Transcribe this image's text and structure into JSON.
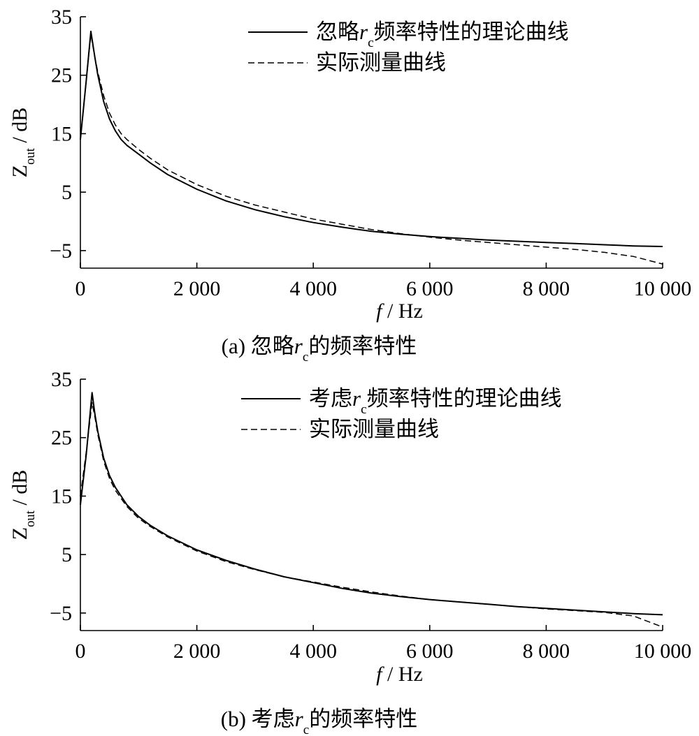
{
  "chart_data": [
    {
      "type": "line",
      "caption": "(a)  忽略rc的频率特性",
      "xlabel": "f / Hz",
      "ylabel": "Zout / dB",
      "xlim": [
        0,
        10000
      ],
      "ylim": [
        -8,
        35
      ],
      "xticks": [
        0,
        2000,
        4000,
        6000,
        8000,
        10000
      ],
      "xtick_labels": [
        "0",
        "2 000",
        "4 000",
        "6 000",
        "8 000",
        "10 000"
      ],
      "yticks": [
        -5,
        5,
        15,
        25,
        35
      ],
      "ytick_labels": [
        "−5",
        "5",
        "15",
        "25",
        "35"
      ],
      "legend_position": "top-right",
      "series": [
        {
          "name": "忽略rc频率特性的理论曲线",
          "style": "solid",
          "x": [
            0,
            100,
            180,
            250,
            300,
            400,
            500,
            600,
            700,
            800,
            1000,
            1200,
            1500,
            2000,
            2500,
            3000,
            3500,
            4000,
            4500,
            5000,
            5500,
            6000,
            6500,
            7000,
            7500,
            8000,
            8500,
            9000,
            9500,
            10000
          ],
          "y": [
            14,
            24,
            32.5,
            28,
            25,
            20.5,
            17.5,
            15.5,
            14,
            13,
            11.5,
            10,
            8,
            5.5,
            3.5,
            2,
            0.8,
            -0.2,
            -1,
            -1.7,
            -2.2,
            -2.6,
            -2.9,
            -3.2,
            -3.4,
            -3.6,
            -3.8,
            -4,
            -4.2,
            -4.3
          ]
        },
        {
          "name": "实际测量曲线",
          "style": "dashed",
          "x": [
            0,
            100,
            180,
            250,
            300,
            400,
            500,
            600,
            700,
            800,
            1000,
            1200,
            1500,
            2000,
            2500,
            3000,
            3500,
            4000,
            4500,
            5000,
            5500,
            6000,
            6500,
            7000,
            7500,
            8000,
            8500,
            9000,
            9500,
            10000
          ],
          "y": [
            14,
            24,
            32,
            28,
            25.5,
            21.5,
            18.5,
            16.5,
            15,
            14,
            12.3,
            10.8,
            8.8,
            6.3,
            4.3,
            2.8,
            1.6,
            0.4,
            -0.5,
            -1.4,
            -2.1,
            -2.7,
            -3.2,
            -3.6,
            -4,
            -4.4,
            -4.8,
            -5.3,
            -6,
            -7.3
          ]
        }
      ]
    },
    {
      "type": "line",
      "caption": "(b)  考虑rc的频率特性",
      "xlabel": "f / Hz",
      "ylabel": "Zout / dB",
      "xlim": [
        0,
        10000
      ],
      "ylim": [
        -8,
        35
      ],
      "xticks": [
        0,
        2000,
        4000,
        6000,
        8000,
        10000
      ],
      "xtick_labels": [
        "0",
        "2 000",
        "4 000",
        "6 000",
        "8 000",
        "10 000"
      ],
      "yticks": [
        -5,
        5,
        15,
        25,
        35
      ],
      "ytick_labels": [
        "−5",
        "5",
        "15",
        "25",
        "35"
      ],
      "legend_position": "top-right",
      "series": [
        {
          "name": "考虑rc频率特性的理论曲线",
          "style": "solid",
          "x": [
            0,
            100,
            200,
            250,
            300,
            400,
            500,
            600,
            800,
            1000,
            1200,
            1500,
            2000,
            2500,
            3000,
            3500,
            4000,
            4500,
            5000,
            5500,
            6000,
            6500,
            7000,
            7500,
            8000,
            8500,
            9000,
            9500,
            10000
          ],
          "y": [
            13.5,
            22,
            32.7,
            29,
            26,
            21.5,
            18.5,
            16.5,
            13.5,
            11.5,
            10,
            8.2,
            5.8,
            4,
            2.5,
            1.2,
            0.2,
            -0.8,
            -1.6,
            -2.2,
            -2.7,
            -3.1,
            -3.5,
            -3.9,
            -4.2,
            -4.5,
            -4.8,
            -5.1,
            -5.3
          ]
        },
        {
          "name": "实际测量曲线",
          "style": "dashed",
          "x": [
            0,
            100,
            200,
            250,
            300,
            400,
            500,
            600,
            800,
            1000,
            1200,
            1500,
            2000,
            2500,
            3000,
            3500,
            4000,
            4500,
            5000,
            5500,
            6000,
            6500,
            7000,
            7500,
            8000,
            8500,
            9000,
            9500,
            10000
          ],
          "y": [
            15,
            22.5,
            31,
            28.5,
            25.5,
            21,
            18,
            16,
            13.2,
            11.2,
            9.8,
            8,
            5.6,
            3.8,
            2.4,
            1.2,
            0.3,
            -0.6,
            -1.4,
            -2.1,
            -2.7,
            -3.1,
            -3.5,
            -3.9,
            -4.3,
            -4.6,
            -4.9,
            -5.5,
            -7.4
          ]
        }
      ]
    }
  ]
}
